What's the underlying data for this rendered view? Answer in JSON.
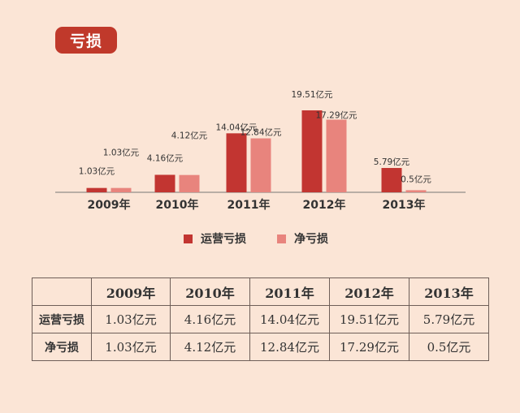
{
  "header": {
    "title": "亏损"
  },
  "colors": {
    "badge": "#c0392b",
    "operating": "#c23531",
    "net": "#e8847d"
  },
  "legend": [
    {
      "label": "运营亏损",
      "color": "#c23531"
    },
    {
      "label": "净亏损",
      "color": "#e8847d"
    }
  ],
  "chart_data": {
    "type": "bar",
    "categories": [
      "2009年",
      "2010年",
      "2011年",
      "2012年",
      "2013年"
    ],
    "series": [
      {
        "name": "运营亏损",
        "values": [
          1.03,
          4.16,
          14.04,
          19.51,
          5.79
        ],
        "labels": [
          "1.03亿元",
          "4.16亿元",
          "14.04亿元",
          "19.51亿元",
          "5.79亿元"
        ]
      },
      {
        "name": "净亏损",
        "values": [
          1.03,
          4.12,
          12.84,
          17.29,
          0.5
        ],
        "labels": [
          "1.03亿元",
          "4.12亿元",
          "12.84亿元",
          "17.29亿元",
          "0.5亿元"
        ]
      }
    ],
    "grid": false,
    "legend_position": "bottom"
  },
  "table": {
    "headers": [
      "",
      "2009年",
      "2010年",
      "2011年",
      "2012年",
      "2013年"
    ],
    "rows": [
      {
        "label": "运营亏损",
        "cells": [
          "1.03亿元",
          "4.16亿元",
          "14.04亿元",
          "19.51亿元",
          "5.79亿元"
        ]
      },
      {
        "label": "净亏损",
        "cells": [
          "1.03亿元",
          "4.12亿元",
          "12.84亿元",
          "17.29亿元",
          "0.5亿元"
        ]
      }
    ]
  }
}
